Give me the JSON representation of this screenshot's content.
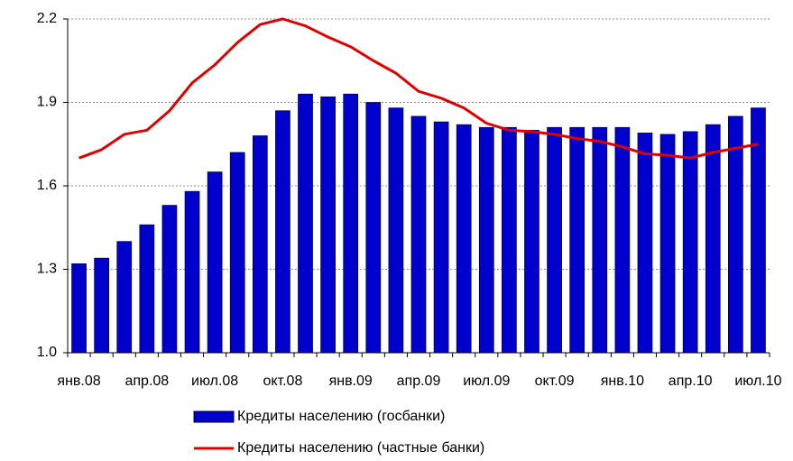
{
  "chart_data": {
    "type": "bar_line",
    "categories": [
      "янв.08",
      null,
      null,
      "апр.08",
      null,
      null,
      "июл.08",
      null,
      null,
      "окт.08",
      null,
      null,
      "янв.09",
      null,
      null,
      "апр.09",
      null,
      null,
      "июл.09",
      null,
      null,
      "окт.09",
      null,
      null,
      "янв.10",
      null,
      null,
      "апр.10",
      null,
      null,
      "июл.10"
    ],
    "series": [
      {
        "name": "Кредиты населению (госбанки)",
        "type": "bar",
        "color": "#0000cc",
        "values": [
          1.32,
          1.34,
          1.4,
          1.46,
          1.53,
          1.58,
          1.65,
          1.72,
          1.78,
          1.87,
          1.93,
          1.92,
          1.93,
          1.9,
          1.88,
          1.85,
          1.83,
          1.82,
          1.81,
          1.81,
          1.8,
          1.81,
          1.81,
          1.81,
          1.81,
          1.79,
          1.785,
          1.795,
          1.82,
          1.85,
          1.88
        ]
      },
      {
        "name": "Кредиты населению (частные банки)",
        "type": "line",
        "color": "#dd0000",
        "values": [
          1.7,
          1.73,
          1.785,
          1.8,
          1.87,
          1.97,
          2.035,
          2.115,
          2.18,
          2.2,
          2.175,
          2.135,
          2.1,
          2.05,
          2.005,
          1.94,
          1.915,
          1.88,
          1.825,
          1.8,
          1.795,
          1.785,
          1.77,
          1.76,
          1.74,
          1.715,
          1.71,
          1.7,
          1.72,
          1.735,
          1.75
        ]
      }
    ],
    "ylim": [
      1.0,
      2.2
    ],
    "yticks": [
      {
        "value": 1,
        "label": "1.0"
      },
      1.3,
      1.6,
      1.9,
      2.2
    ],
    "grid": true
  }
}
